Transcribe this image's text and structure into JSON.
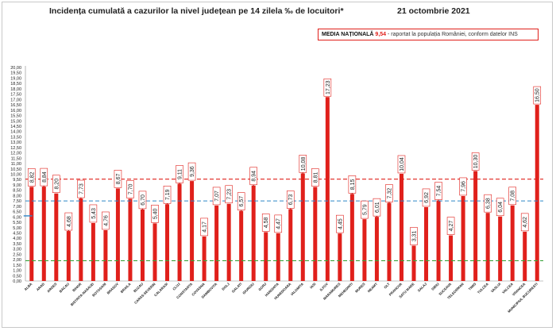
{
  "header": {
    "title": "Incidența cumulată a cazurilor la nivel județean pe 14 zilela ‰ de locuitori*",
    "date": "21 octombrie 2021"
  },
  "legend": {
    "label": "MEDIA NAȚIONALĂ",
    "value": "9,54",
    "note": "- raportat la populația României, conform datelor INS"
  },
  "colors": {
    "bar": "#e0201b",
    "national_line": "#e0201b",
    "blue_line": "#2e86c8",
    "green_line": "#3aa23a",
    "arrow": "#9b1510"
  },
  "chart_data": {
    "type": "bar",
    "title": "Incidența cumulată a cazurilor la nivel județean pe 14 zilela ‰ de locuitori*",
    "categories": [
      "ALBA",
      "ARAD",
      "ARGES",
      "BACAU",
      "BIHOR",
      "BISTRITA-NASAUD",
      "BOTOSANI",
      "BRASOV",
      "BRAILA",
      "BUZAU",
      "CARAS-SEVERIN",
      "CALARASI",
      "CLUJ",
      "CONSTANTA",
      "COVASNA",
      "DAMBOVITA",
      "DOLJ",
      "GALATI",
      "GIURGIU",
      "GORJ",
      "HARGHITA",
      "HUNEDOARA",
      "IALOMITA",
      "IASI",
      "ILFOV",
      "MARAMURES",
      "MEHEDINTI",
      "MURES",
      "NEAMT",
      "OLT",
      "PRAHOVA",
      "SATU MARE",
      "SALAJ",
      "SIBIU",
      "SUCEAVA",
      "TELEORMAN",
      "TIMIS",
      "TULCEA",
      "VASLUI",
      "VALCEA",
      "VRANCEA",
      "MUNICIPIUL BUCURESTI"
    ],
    "series": [
      {
        "values": [
          8.82,
          8.84,
          8.2,
          4.68,
          7.73,
          5.43,
          4.76,
          8.67,
          7.7,
          6.7,
          5.4,
          7.19,
          9.11,
          9.36,
          4.17,
          7.07,
          7.23,
          6.57,
          8.94,
          4.58,
          4.47,
          6.73,
          10.08,
          8.81,
          17.23,
          4.45,
          8.15,
          5.79,
          6.01,
          7.32,
          10.04,
          3.31,
          6.92,
          7.54,
          4.27,
          7.96,
          10.3,
          6.38,
          6.04,
          7.08,
          4.62,
          16.5
        ],
        "value_labels": [
          "8,82",
          "8,84",
          "8,20",
          "4,68",
          "7,73",
          "5,43",
          "4,76",
          "8,67",
          "7,70",
          "6,70",
          "5,40",
          "7,19",
          "9,11",
          "9,36",
          "4,17",
          "7,07",
          "7,23",
          "6,57",
          "8,94",
          "4,58",
          "4,47",
          "6,73",
          "10,08",
          "8,81",
          "17,23",
          "4,45",
          "8,15",
          "5,79",
          "6,01",
          "7,32",
          "10,04",
          "3,31",
          "6,92",
          "7,54",
          "4,27",
          "7,96",
          "10,30",
          "6,38",
          "6,04",
          "7,08",
          "4,62",
          "16,50"
        ]
      }
    ],
    "trend_up": [
      "ARAD",
      "BACAU",
      "BIHOR",
      "BUZAU",
      "CALARASI",
      "CLUJ",
      "GALATI",
      "GIURGIU",
      "HUNEDOARA",
      "IALOMITA",
      "MEHEDINTI",
      "NEAMT",
      "OLT",
      "SIBIU"
    ],
    "reference_lines": [
      {
        "value": 9.54,
        "style": "dashed",
        "color": "#e0201b"
      },
      {
        "value": 7.5,
        "style": "dashed",
        "color": "#2e86c8"
      },
      {
        "value": 1.9,
        "style": "dashed",
        "color": "#3aa23a"
      }
    ],
    "marker": {
      "category": "ALBA",
      "value": 6.1,
      "color": "#2e86c8"
    },
    "ylim": [
      0,
      20
    ],
    "yticks": [
      "0,00",
      "0,50",
      "1,00",
      "1,50",
      "2,00",
      "2,50",
      "3,00",
      "3,50",
      "4,00",
      "4,50",
      "5,00",
      "5,50",
      "6,00",
      "6,50",
      "7,00",
      "7,50",
      "8,00",
      "8,50",
      "9,00",
      "9,50",
      "10,00",
      "10,50",
      "11,00",
      "11,50",
      "12,00",
      "12,50",
      "13,00",
      "13,50",
      "14,00",
      "14,50",
      "15,00",
      "15,50",
      "16,00",
      "16,50",
      "17,00",
      "17,50",
      "18,00",
      "18,50",
      "19,00",
      "19,50",
      "20,00"
    ],
    "xlabel": "",
    "ylabel": ""
  }
}
